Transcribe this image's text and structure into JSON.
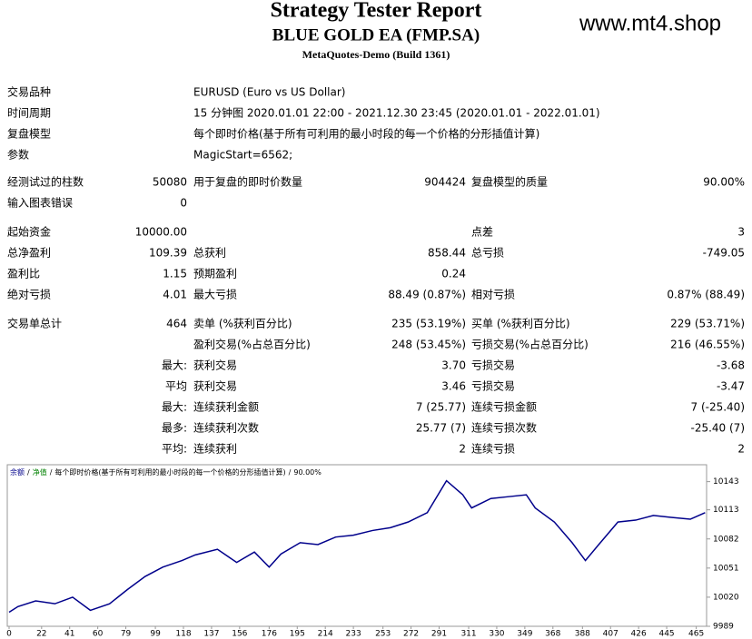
{
  "header": {
    "title": "Strategy Tester Report",
    "subtitle": "BLUE GOLD EA (FMP.SA)",
    "build": "MetaQuotes-Demo (Build 1361)",
    "watermark": "www.mt4.shop"
  },
  "info": [
    [
      "交易品种",
      "EURUSD (Euro vs US Dollar)"
    ],
    [
      "时间周期",
      "15 分钟图 2020.01.01 22:00 - 2021.12.30 23:45 (2020.01.01 - 2022.01.01)"
    ],
    [
      "复盘模型",
      "每个即时价格(基于所有可利用的最小时段的每一个价格的分形插值计算)"
    ],
    [
      "参数",
      "MagicStart=6562;"
    ]
  ],
  "stats": [
    [
      "经测试过的柱数",
      "50080",
      "用于复盘的即时价数量",
      "904424",
      "复盘模型的质量",
      "90.00%"
    ],
    [
      "输入图表错误",
      "0",
      null,
      null,
      null,
      null
    ],
    [
      "起始资金",
      "10000.00",
      null,
      null,
      "点差",
      "3"
    ],
    [
      "总净盈利",
      "109.39",
      "总获利",
      "858.44",
      "总亏损",
      "-749.05"
    ],
    [
      "盈利比",
      "1.15",
      "预期盈利",
      "0.24",
      null,
      null
    ],
    [
      "绝对亏损",
      "4.01",
      "最大亏损",
      "88.49 (0.87%)",
      "相对亏损",
      "0.87% (88.49)"
    ],
    [
      "交易单总计",
      "464",
      "卖单 (%获利百分比)",
      "235 (53.19%)",
      "买单 (%获利百分比)",
      "229 (53.71%)"
    ],
    [
      null,
      null,
      "盈利交易(%占总百分比)",
      "248 (53.45%)",
      "亏损交易(%占总百分比)",
      "216 (46.55%)"
    ],
    [
      null,
      "最大:",
      "获利交易",
      "3.70",
      "亏损交易",
      "-3.68"
    ],
    [
      null,
      "平均",
      "获利交易",
      "3.46",
      "亏损交易",
      "-3.47"
    ],
    [
      null,
      "最大:",
      "连续获利金额",
      "7 (25.77)",
      "连续亏损金额",
      "7 (-25.40)"
    ],
    [
      null,
      "最多:",
      "连续获利次数",
      "25.77 (7)",
      "连续亏损次数",
      "-25.40 (7)"
    ],
    [
      null,
      "平均:",
      "连续获利",
      "2",
      "连续亏损",
      "2"
    ]
  ],
  "chart_data": {
    "type": "line",
    "legend_separator": "/",
    "legend_notes": [
      {
        "text": "净值",
        "color": "#008000"
      },
      {
        "text": "每个即时价格(基于所有可利用的最小时段的每一个价格的分形插值计算)",
        "color": "#000000"
      },
      {
        "text": "90.00%",
        "color": "#000000"
      }
    ],
    "x": [
      0,
      6,
      18,
      31,
      43,
      55,
      68,
      80,
      92,
      104,
      117,
      126,
      141,
      154,
      166,
      176,
      184,
      197,
      209,
      221,
      233,
      246,
      258,
      270,
      283,
      296,
      307,
      313,
      326,
      338,
      350,
      356,
      369,
      381,
      390,
      399,
      412,
      424,
      436,
      448,
      461,
      471
    ],
    "series": [
      {
        "name": "余额",
        "color": "#00008b",
        "values": [
          10004,
          10010,
          10016,
          10013,
          10020,
          10006,
          10013,
          10028,
          10042,
          10052,
          10059,
          10065,
          10071,
          10057,
          10068,
          10052,
          10066,
          10078,
          10076,
          10084,
          10086,
          10091,
          10094,
          10100,
          10110,
          10144,
          10129,
          10115,
          10125,
          10127,
          10129,
          10115,
          10100,
          10078,
          10059,
          10076,
          10100,
          10102,
          10107,
          10105,
          10103,
          10110
        ]
      }
    ],
    "xlim": [
      0,
      472
    ],
    "ylim": [
      9989,
      10161
    ],
    "xticks": [
      0,
      22,
      41,
      60,
      79,
      99,
      118,
      137,
      156,
      176,
      195,
      214,
      233,
      253,
      272,
      291,
      311,
      330,
      349,
      368,
      388,
      407,
      426,
      445,
      465
    ],
    "yticks": [
      9989,
      10020,
      10051,
      10082,
      10113,
      10143
    ]
  }
}
